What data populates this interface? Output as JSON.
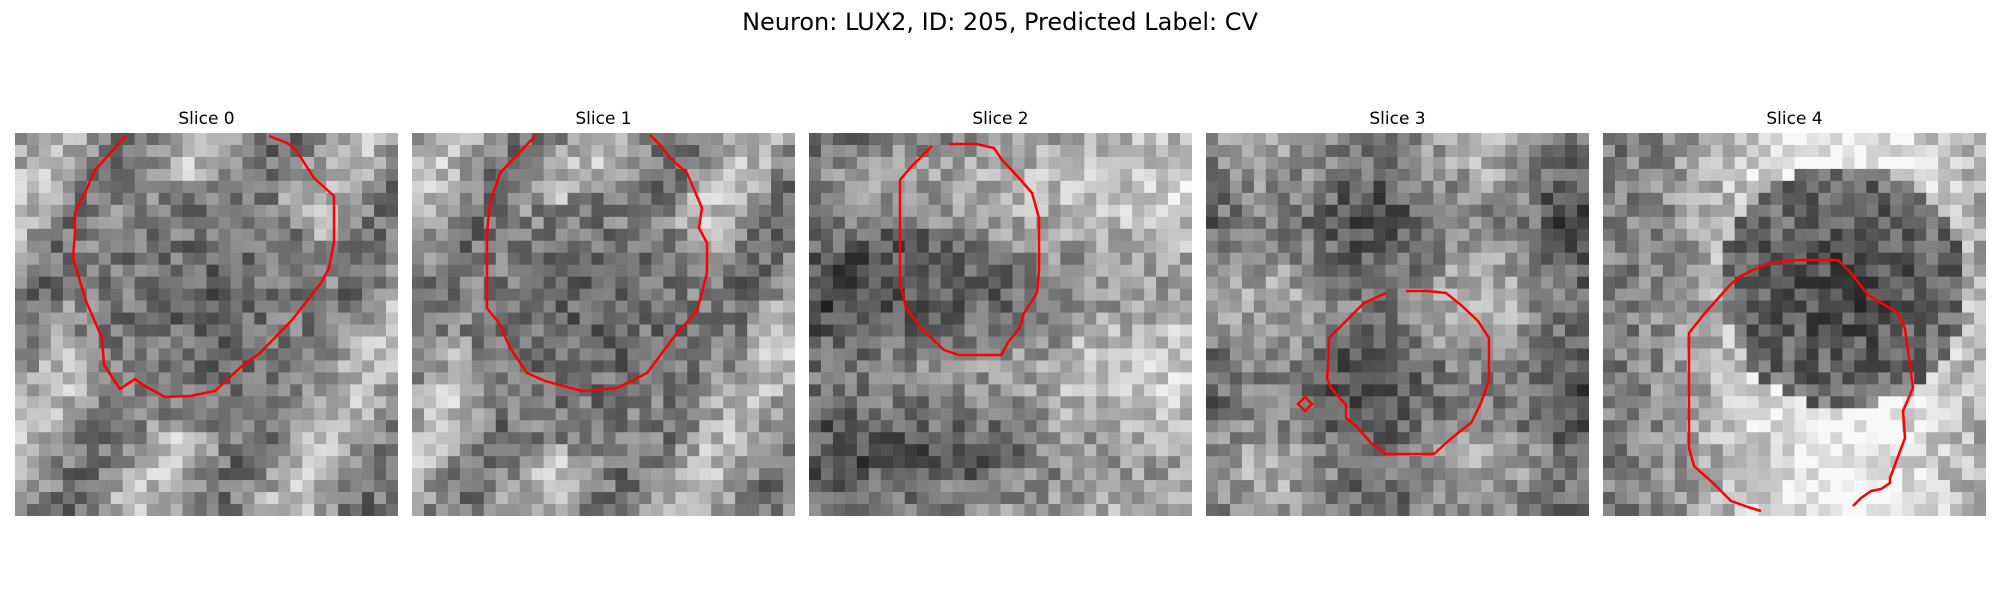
{
  "figure": {
    "title": "Neuron: LUX2, ID: 205, Predicted Label: CV"
  },
  "contour_color": "#ff0000",
  "panels": [
    {
      "title": "Slice 0",
      "seed": 11,
      "center": [
        0.5,
        0.45
      ],
      "radius": 0.34,
      "tone": "dark-center"
    },
    {
      "title": "Slice 1",
      "seed": 23,
      "center": [
        0.48,
        0.5
      ],
      "radius": 0.34,
      "tone": "dark-center"
    },
    {
      "title": "Slice 2",
      "seed": 37,
      "center": [
        0.32,
        0.58
      ],
      "radius": 0.34,
      "tone": "dark-left"
    },
    {
      "title": "Slice 3",
      "seed": 51,
      "center": [
        0.58,
        0.3
      ],
      "radius": 0.3,
      "tone": "mid"
    },
    {
      "title": "Slice 4",
      "seed": 67,
      "center": [
        0.63,
        0.4
      ],
      "radius": 0.32,
      "tone": "dark-blob"
    }
  ]
}
